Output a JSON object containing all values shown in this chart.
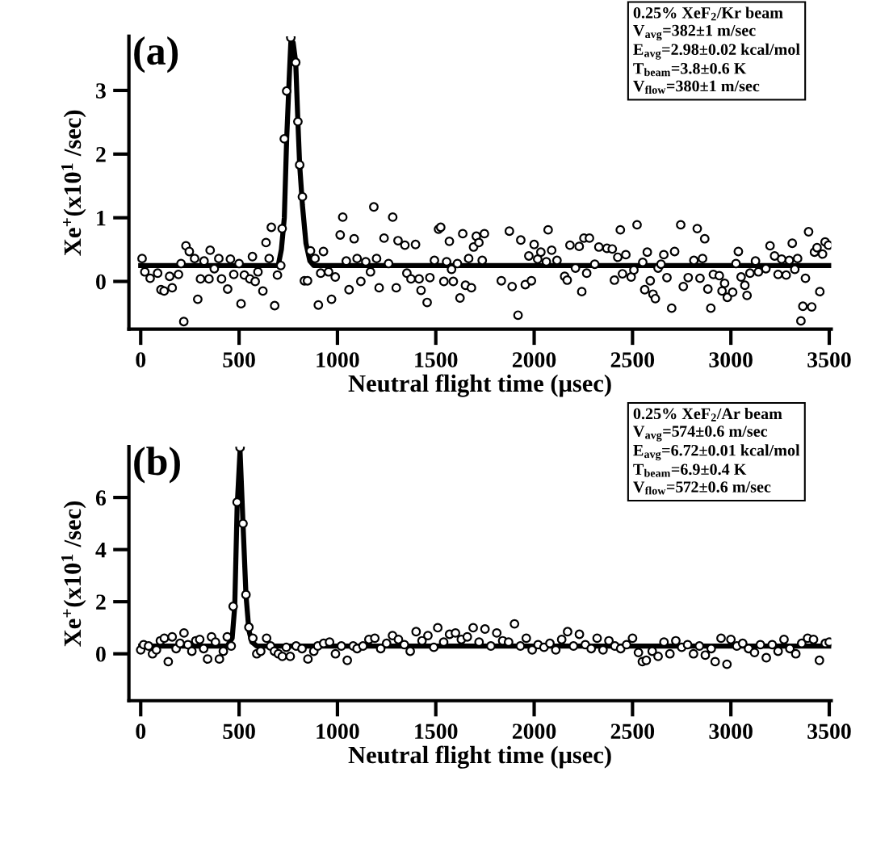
{
  "chart_data": [
    {
      "type": "scatter",
      "title": "(a)",
      "xlabel": "Neutral flight time (μsec)",
      "ylabel": "Xe$^{+}$(x10$^{1}$ /sec)",
      "annotations": [
        "0.25% XeF$_{2}$/Kr beam",
        "V$_{avg}$=382±1 m/sec",
        "E$_{avg}$=2.98±0.02 kcal/mol",
        "T$_{beam}$=3.8±0.6 K",
        "V$_{flow}$=380±1 m/sec"
      ],
      "xlim": [
        -60,
        3510
      ],
      "ylim": [
        -0.75,
        3.85
      ],
      "xticks": [
        0,
        500,
        1000,
        1500,
        2000,
        2500,
        3000,
        3500
      ],
      "yticks": [
        0,
        1,
        2,
        3
      ],
      "grid": false,
      "legend": false,
      "series": [
        {
          "marker": "circle",
          "color": "#000000",
          "x": [
            7,
            21,
            48,
            86,
            103,
            119,
            147,
            160,
            192,
            205,
            219,
            230,
            247,
            274,
            290,
            304,
            322,
            347,
            353,
            374,
            397,
            411,
            442,
            456,
            473,
            500,
            510,
            527,
            555,
            568,
            582,
            596,
            621,
            637,
            653,
            664,
            681,
            695,
            712,
            719,
            730,
            742,
            763,
            788,
            799,
            808,
            822,
            832,
            848,
            863,
            886,
            903,
            915,
            929,
            955,
            970,
            989,
            1014,
            1027,
            1045,
            1059,
            1085,
            1100,
            1119,
            1144,
            1168,
            1185,
            1199,
            1212,
            1237,
            1260,
            1281,
            1299,
            1308,
            1343,
            1353,
            1374,
            1397,
            1415,
            1425,
            1456,
            1470,
            1493,
            1514,
            1525,
            1541,
            1555,
            1569,
            1580,
            1589,
            1610,
            1623,
            1637,
            1651,
            1667,
            1681,
            1692,
            1706,
            1719,
            1736,
            1747,
            1833,
            1874,
            1888,
            1918,
            1932,
            1955,
            1973,
            1986,
            2000,
            2018,
            2034,
            2062,
            2071,
            2089,
            2116,
            2155,
            2168,
            2182,
            2210,
            2229,
            2242,
            2253,
            2267,
            2281,
            2308,
            2329,
            2370,
            2397,
            2408,
            2425,
            2438,
            2449,
            2466,
            2493,
            2507,
            2523,
            2552,
            2562,
            2575,
            2590,
            2604,
            2616,
            2630,
            2645,
            2659,
            2675,
            2699,
            2714,
            2745,
            2758,
            2783,
            2812,
            2829,
            2843,
            2856,
            2867,
            2883,
            2898,
            2911,
            2941,
            2955,
            2968,
            2982,
            3009,
            3026,
            3038,
            3052,
            3071,
            3082,
            3097,
            3125,
            3140,
            3178,
            3199,
            3222,
            3240,
            3258,
            3281,
            3297,
            3312,
            3325,
            3339,
            3356,
            3366,
            3379,
            3395,
            3411,
            3425,
            3438,
            3452,
            3466,
            3479,
            3496
          ],
          "values": [
            0.36,
            0.15,
            0.05,
            0.13,
            -0.13,
            -0.15,
            0.08,
            -0.1,
            0.11,
            0.28,
            -0.63,
            0.56,
            0.47,
            0.36,
            -0.28,
            0.04,
            0.32,
            0.04,
            0.49,
            0.2,
            0.36,
            0.04,
            -0.12,
            0.35,
            0.11,
            0.28,
            -0.35,
            0.1,
            0.04,
            0.39,
            0.0,
            0.15,
            -0.15,
            0.61,
            0.36,
            0.85,
            -0.38,
            0.1,
            0.25,
            0.83,
            2.24,
            2.99,
            3.83,
            3.44,
            2.51,
            1.83,
            1.33,
            0.01,
            0.01,
            0.48,
            0.36,
            -0.37,
            0.13,
            0.47,
            0.15,
            -0.28,
            0.07,
            0.73,
            1.01,
            0.32,
            -0.13,
            0.67,
            0.36,
            0.0,
            0.31,
            0.15,
            1.17,
            0.36,
            -0.1,
            0.68,
            0.28,
            1.01,
            -0.1,
            0.64,
            0.57,
            0.13,
            0.04,
            0.58,
            0.04,
            -0.14,
            -0.33,
            0.06,
            0.33,
            0.82,
            0.85,
            0.0,
            0.31,
            0.63,
            0.19,
            0.0,
            0.28,
            -0.26,
            0.75,
            -0.06,
            0.36,
            -0.1,
            0.54,
            0.71,
            0.61,
            0.33,
            0.75,
            0.01,
            0.79,
            -0.08,
            -0.53,
            0.65,
            -0.05,
            0.4,
            0.01,
            0.58,
            0.35,
            0.46,
            0.31,
            0.81,
            0.49,
            0.33,
            0.08,
            0.02,
            0.57,
            0.21,
            0.55,
            -0.16,
            0.68,
            0.13,
            0.68,
            0.27,
            0.54,
            0.52,
            0.51,
            0.02,
            0.38,
            0.81,
            0.12,
            0.42,
            0.07,
            0.18,
            0.89,
            0.3,
            -0.13,
            0.46,
            0.01,
            -0.2,
            -0.27,
            0.21,
            0.27,
            0.42,
            0.06,
            -0.42,
            0.47,
            0.89,
            -0.08,
            0.06,
            0.33,
            0.83,
            0.05,
            0.36,
            0.67,
            -0.12,
            -0.42,
            0.11,
            0.09,
            -0.15,
            -0.03,
            -0.25,
            -0.17,
            0.28,
            0.47,
            0.07,
            -0.06,
            -0.22,
            0.13,
            0.32,
            0.15,
            0.2,
            0.56,
            0.4,
            0.11,
            0.35,
            0.1,
            0.33,
            0.6,
            0.19,
            0.36,
            -0.62,
            -0.39,
            0.05,
            0.78,
            -0.4,
            0.46,
            0.53,
            -0.16,
            0.43,
            0.62,
            0.57
          ]
        },
        {
          "type": "line",
          "marker": "none",
          "color": "#000000",
          "x": [
            0,
            699,
            715,
            730,
            742,
            755,
            763,
            775,
            788,
            799,
            808,
            822,
            840,
            860,
            880,
            3500
          ],
          "values": [
            0.25,
            0.25,
            0.5,
            1.0,
            2.24,
            3.2,
            3.75,
            3.75,
            3.44,
            2.51,
            1.83,
            1.2,
            0.6,
            0.32,
            0.25,
            0.25
          ]
        }
      ]
    },
    {
      "type": "scatter",
      "title": "(b)",
      "xlabel": "Neutral flight time (μsec)",
      "ylabel": "Xe$^{+}$(x10$^{1}$ /sec)",
      "annotations": [
        "0.25% XeF$_{2}$/Ar beam",
        "V$_{avg}$=574±0.6 m/sec",
        "E$_{avg}$=6.72±0.01 kcal/mol",
        "T$_{beam}$=6.9±0.4 K",
        "V$_{flow}$=572±0.6 m/sec"
      ],
      "xlim": [
        -60,
        3510
      ],
      "ylim": [
        -1.8,
        7.95
      ],
      "xticks": [
        0,
        500,
        1000,
        1500,
        2000,
        2500,
        3000,
        3500
      ],
      "yticks": [
        0,
        2,
        4,
        6
      ],
      "grid": false,
      "legend": false,
      "series": [
        {
          "marker": "circle",
          "color": "#000000",
          "x": [
            0,
            15,
            40,
            60,
            80,
            100,
            120,
            140,
            160,
            180,
            200,
            220,
            240,
            260,
            280,
            300,
            320,
            340,
            360,
            380,
            400,
            420,
            440,
            460,
            470,
            490,
            505,
            520,
            535,
            550,
            570,
            590,
            610,
            640,
            660,
            680,
            700,
            720,
            740,
            760,
            790,
            820,
            850,
            880,
            900,
            930,
            960,
            990,
            1020,
            1050,
            1080,
            1100,
            1130,
            1160,
            1190,
            1220,
            1250,
            1280,
            1310,
            1340,
            1370,
            1400,
            1430,
            1460,
            1490,
            1510,
            1540,
            1570,
            1600,
            1630,
            1660,
            1690,
            1720,
            1750,
            1780,
            1810,
            1840,
            1870,
            1900,
            1930,
            1960,
            1990,
            2020,
            2050,
            2080,
            2110,
            2140,
            2170,
            2200,
            2230,
            2260,
            2290,
            2320,
            2350,
            2380,
            2410,
            2440,
            2470,
            2500,
            2530,
            2550,
            2570,
            2600,
            2630,
            2660,
            2690,
            2720,
            2750,
            2780,
            2810,
            2840,
            2870,
            2900,
            2920,
            2950,
            2980,
            3000,
            3030,
            3060,
            3090,
            3120,
            3150,
            3180,
            3210,
            3240,
            3270,
            3300,
            3330,
            3360,
            3390,
            3420,
            3450,
            3480,
            3500
          ],
          "values": [
            0.15,
            0.35,
            0.3,
            0.0,
            0.15,
            0.5,
            0.6,
            -0.3,
            0.65,
            0.2,
            0.4,
            0.8,
            0.35,
            0.1,
            0.5,
            0.55,
            0.2,
            -0.2,
            0.65,
            0.45,
            -0.2,
            0.1,
            0.65,
            0.3,
            1.82,
            5.82,
            7.92,
            5.0,
            2.27,
            1.02,
            0.6,
            0.0,
            0.1,
            0.6,
            0.3,
            0.1,
            0.0,
            -0.1,
            0.25,
            -0.1,
            0.3,
            0.2,
            -0.2,
            0.1,
            0.3,
            0.4,
            0.45,
            0.0,
            0.3,
            -0.25,
            0.3,
            0.2,
            0.3,
            0.55,
            0.6,
            0.2,
            0.4,
            0.7,
            0.55,
            0.35,
            0.1,
            0.85,
            0.5,
            0.7,
            0.25,
            1.0,
            0.45,
            0.75,
            0.8,
            0.55,
            0.65,
            1.0,
            0.45,
            0.95,
            0.3,
            0.8,
            0.5,
            0.45,
            1.15,
            0.3,
            0.6,
            0.15,
            0.35,
            0.25,
            0.4,
            0.15,
            0.55,
            0.85,
            0.3,
            0.75,
            0.35,
            0.2,
            0.6,
            0.15,
            0.5,
            0.3,
            0.2,
            0.35,
            0.6,
            0.05,
            -0.3,
            -0.25,
            0.1,
            -0.1,
            0.45,
            0.0,
            0.5,
            0.25,
            0.35,
            0.0,
            0.3,
            -0.05,
            0.2,
            -0.3,
            0.6,
            -0.4,
            0.55,
            0.3,
            0.4,
            0.2,
            0.05,
            0.35,
            -0.15,
            0.35,
            0.1,
            0.55,
            0.2,
            0.0,
            0.4,
            0.6,
            0.55,
            -0.25,
            0.4,
            0.45
          ]
        },
        {
          "type": "line",
          "marker": "none",
          "color": "#000000",
          "x": [
            0,
            440,
            465,
            478,
            490,
            505,
            520,
            535,
            550,
            565,
            590,
            3500
          ],
          "values": [
            0.3,
            0.3,
            0.6,
            1.82,
            5.6,
            7.8,
            5.0,
            2.27,
            0.9,
            0.45,
            0.3,
            0.3
          ]
        }
      ]
    }
  ]
}
